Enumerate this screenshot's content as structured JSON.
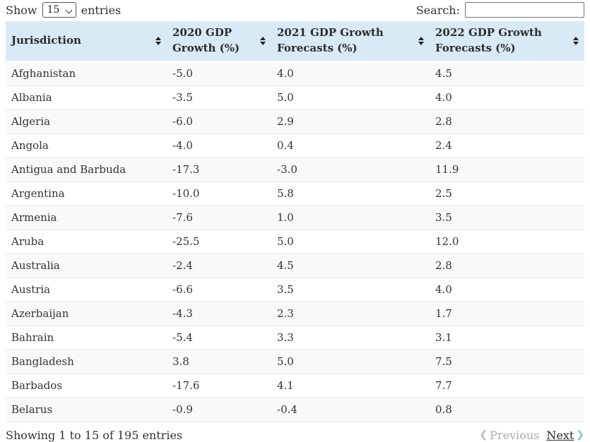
{
  "controls": {
    "show_label": "Show",
    "page_size": "15",
    "entries_label": "entries",
    "search_label": "Search:",
    "search_value": "",
    "search_placeholder": ""
  },
  "table": {
    "headers": [
      {
        "label": "Jurisdiction",
        "sortable": true
      },
      {
        "label": "2020 GDP Growth (%)",
        "sortable": true
      },
      {
        "label": "2021 GDP Growth Forecasts (%)",
        "sortable": true
      },
      {
        "label": "2022 GDP Growth Forecasts (%)",
        "sortable": true
      }
    ],
    "rows": [
      {
        "jurisdiction": "Afghanistan",
        "gdp2020": "-5.0",
        "gdp2021": "4.0",
        "gdp2022": "4.5"
      },
      {
        "jurisdiction": "Albania",
        "gdp2020": "-3.5",
        "gdp2021": "5.0",
        "gdp2022": "4.0"
      },
      {
        "jurisdiction": "Algeria",
        "gdp2020": "-6.0",
        "gdp2021": "2.9",
        "gdp2022": "2.8"
      },
      {
        "jurisdiction": "Angola",
        "gdp2020": "-4.0",
        "gdp2021": "0.4",
        "gdp2022": "2.4"
      },
      {
        "jurisdiction": "Antigua and Barbuda",
        "gdp2020": "-17.3",
        "gdp2021": "-3.0",
        "gdp2022": "11.9"
      },
      {
        "jurisdiction": "Argentina",
        "gdp2020": "-10.0",
        "gdp2021": "5.8",
        "gdp2022": "2.5"
      },
      {
        "jurisdiction": "Armenia",
        "gdp2020": "-7.6",
        "gdp2021": "1.0",
        "gdp2022": "3.5"
      },
      {
        "jurisdiction": "Aruba",
        "gdp2020": "-25.5",
        "gdp2021": "5.0",
        "gdp2022": "12.0"
      },
      {
        "jurisdiction": "Australia",
        "gdp2020": "-2.4",
        "gdp2021": "4.5",
        "gdp2022": "2.8"
      },
      {
        "jurisdiction": "Austria",
        "gdp2020": "-6.6",
        "gdp2021": "3.5",
        "gdp2022": "4.0"
      },
      {
        "jurisdiction": "Azerbaijan",
        "gdp2020": "-4.3",
        "gdp2021": "2.3",
        "gdp2022": "1.7"
      },
      {
        "jurisdiction": "Bahrain",
        "gdp2020": "-5.4",
        "gdp2021": "3.3",
        "gdp2022": "3.1"
      },
      {
        "jurisdiction": "Bangladesh",
        "gdp2020": "3.8",
        "gdp2021": "5.0",
        "gdp2022": "7.5"
      },
      {
        "jurisdiction": "Barbados",
        "gdp2020": "-17.6",
        "gdp2021": "4.1",
        "gdp2022": "7.7"
      },
      {
        "jurisdiction": "Belarus",
        "gdp2020": "-0.9",
        "gdp2021": "-0.4",
        "gdp2022": "0.8"
      }
    ]
  },
  "footer": {
    "info": "Showing 1 to 15 of 195 entries",
    "previous_label": "Previous",
    "next_label": "Next"
  },
  "icons": {
    "chevron_left": "❮",
    "chevron_right": "❯"
  },
  "colors": {
    "header_bg": "#d7eaf6",
    "row_stripe": "#f9f9f9",
    "row_border": "#e3e3e3",
    "next_chevron": "#8cc0d5",
    "previous_text": "#a9a9a9",
    "text": "#333333"
  }
}
